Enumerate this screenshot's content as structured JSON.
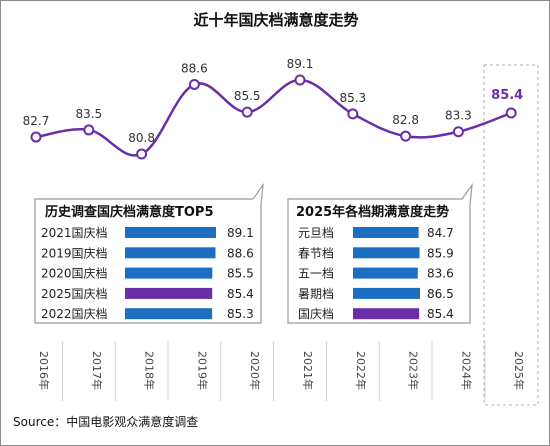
{
  "title": "近十年国庆档满意度走势",
  "source": "Source：中国电影观众满意度调查",
  "colors": {
    "line": "#6a2fa8",
    "bar_blue": "#1b6ec2",
    "bar_purple": "#6a2fa8",
    "highlight_text": "#6a2fa8"
  },
  "chart_data": [
    {
      "type": "line",
      "title": "近十年国庆档满意度走势",
      "x": [
        "2016年",
        "2017年",
        "2018年",
        "2019年",
        "2020年",
        "2021年",
        "2022年",
        "2023年",
        "2024年",
        "2025年"
      ],
      "series": [
        {
          "values": [
            82.7,
            83.5,
            80.8,
            88.6,
            85.5,
            89.1,
            85.3,
            82.8,
            83.3,
            85.4
          ]
        }
      ],
      "highlight": "2025年",
      "grid": false
    },
    {
      "type": "bar",
      "title": "历史调查国庆档满意度TOP5",
      "categories": [
        "2021国庆档",
        "2019国庆档",
        "2020国庆档",
        "2025国庆档",
        "2022国庆档"
      ],
      "values": [
        89.1,
        88.6,
        85.5,
        85.4,
        85.3
      ],
      "highlight": "2025国庆档",
      "orientation": "horizontal"
    },
    {
      "type": "bar",
      "title": "2025年各档期满意度走势",
      "categories": [
        "元旦档",
        "春节档",
        "五一档",
        "暑期档",
        "国庆档"
      ],
      "values": [
        84.7,
        85.9,
        83.6,
        86.5,
        85.4
      ],
      "highlight": "国庆档",
      "orientation": "horizontal"
    }
  ]
}
